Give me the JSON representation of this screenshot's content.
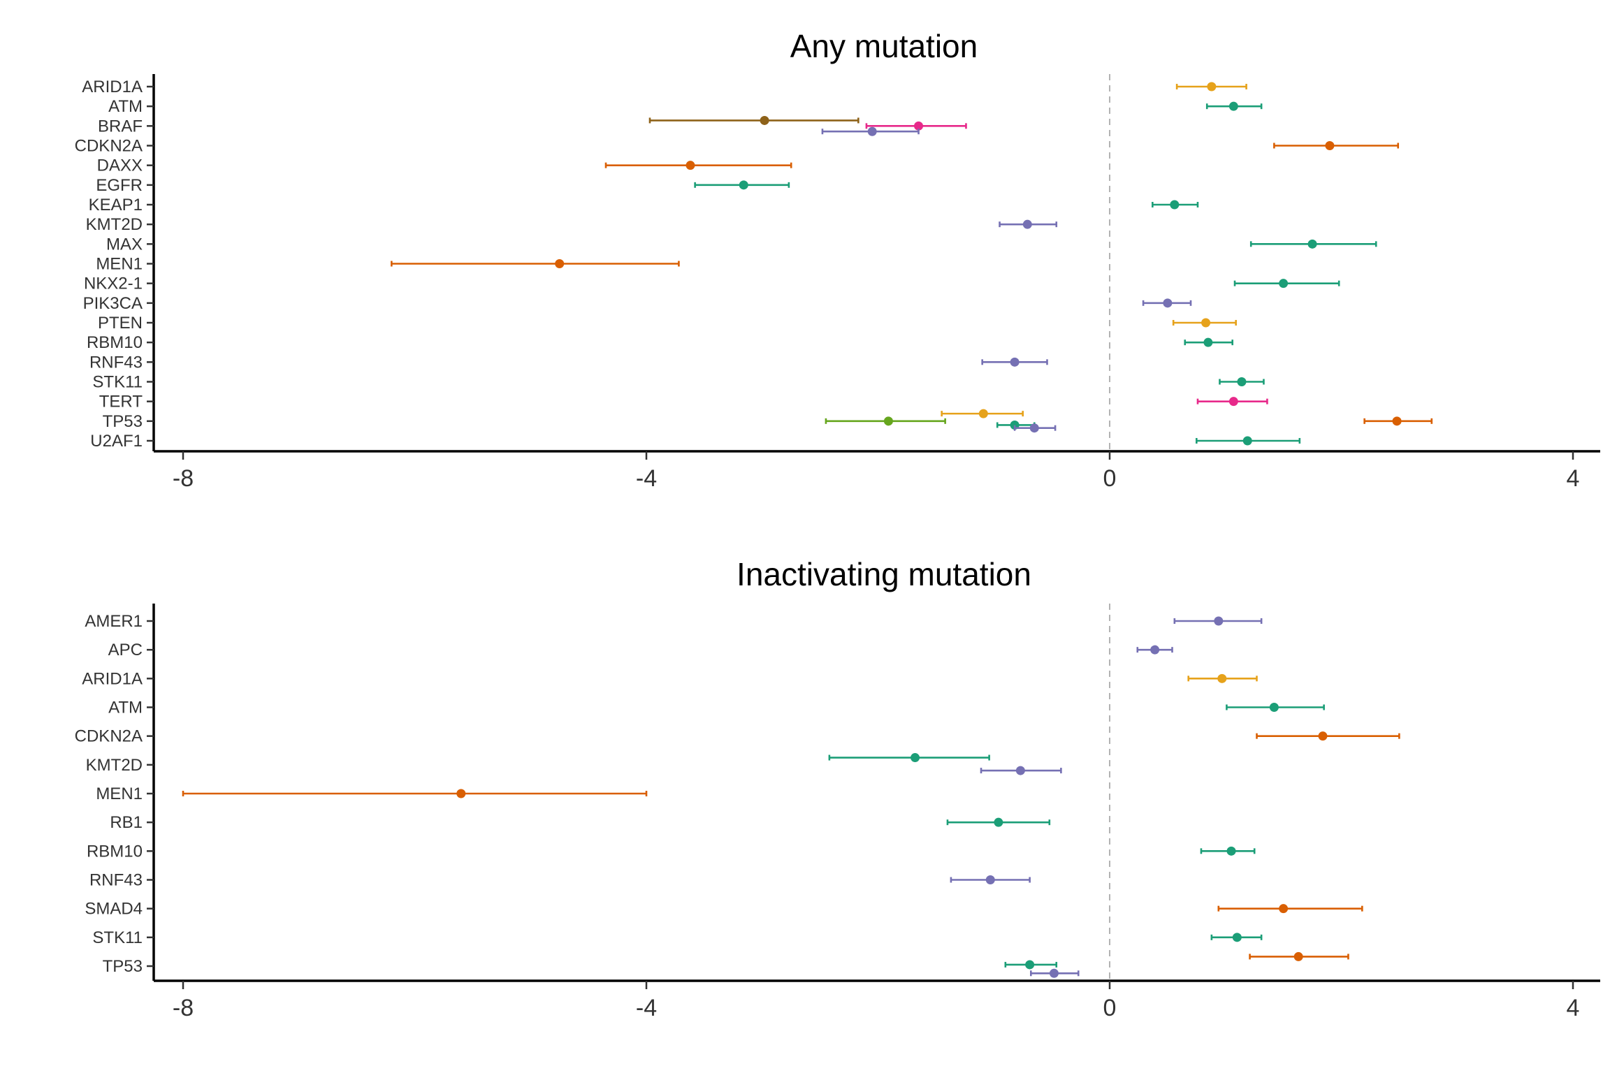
{
  "chart_data": [
    {
      "type": "forest",
      "title": "Any mutation",
      "xlim": [
        -8,
        4
      ],
      "xticks": [
        -8,
        -4,
        0,
        4
      ],
      "reference_line": 0,
      "genes": [
        "ARID1A",
        "ATM",
        "BRAF",
        "CDKN2A",
        "DAXX",
        "EGFR",
        "KEAP1",
        "KMT2D",
        "MAX",
        "MEN1",
        "NKX2-1",
        "PIK3CA",
        "PTEN",
        "RBM10",
        "RNF43",
        "STK11",
        "TERT",
        "TP53",
        "U2AF1"
      ],
      "points": [
        {
          "gene": "ARID1A",
          "est": 0.88,
          "lo": 0.58,
          "hi": 1.18,
          "color": "#E6A21B",
          "offset": 0
        },
        {
          "gene": "ATM",
          "est": 1.07,
          "lo": 0.84,
          "hi": 1.31,
          "color": "#1B9E77",
          "offset": 0
        },
        {
          "gene": "BRAF",
          "est": -2.98,
          "lo": -3.97,
          "hi": -2.17,
          "color": "#8E6219",
          "offset": -0.28
        },
        {
          "gene": "BRAF",
          "est": -1.65,
          "lo": -2.1,
          "hi": -1.24,
          "color": "#E7298A",
          "offset": 0
        },
        {
          "gene": "BRAF",
          "est": -2.05,
          "lo": -2.48,
          "hi": -1.65,
          "color": "#7570B3",
          "offset": 0.28
        },
        {
          "gene": "CDKN2A",
          "est": 1.9,
          "lo": 1.42,
          "hi": 2.49,
          "color": "#D95F02",
          "offset": 0
        },
        {
          "gene": "DAXX",
          "est": -3.62,
          "lo": -4.35,
          "hi": -2.75,
          "color": "#D95F02",
          "offset": 0
        },
        {
          "gene": "EGFR",
          "est": -3.16,
          "lo": -3.58,
          "hi": -2.77,
          "color": "#1B9E77",
          "offset": 0
        },
        {
          "gene": "KEAP1",
          "est": 0.56,
          "lo": 0.37,
          "hi": 0.76,
          "color": "#1B9E77",
          "offset": 0
        },
        {
          "gene": "KMT2D",
          "est": -0.71,
          "lo": -0.95,
          "hi": -0.46,
          "color": "#7570B3",
          "offset": 0
        },
        {
          "gene": "MAX",
          "est": 1.75,
          "lo": 1.22,
          "hi": 2.3,
          "color": "#1B9E77",
          "offset": 0
        },
        {
          "gene": "MEN1",
          "est": -4.75,
          "lo": -6.2,
          "hi": -3.72,
          "color": "#D95F02",
          "offset": 0
        },
        {
          "gene": "NKX2-1",
          "est": 1.5,
          "lo": 1.08,
          "hi": 1.98,
          "color": "#1B9E77",
          "offset": 0
        },
        {
          "gene": "PIK3CA",
          "est": 0.5,
          "lo": 0.29,
          "hi": 0.7,
          "color": "#7570B3",
          "offset": 0
        },
        {
          "gene": "PTEN",
          "est": 0.83,
          "lo": 0.55,
          "hi": 1.09,
          "color": "#E6A21B",
          "offset": 0
        },
        {
          "gene": "RBM10",
          "est": 0.85,
          "lo": 0.65,
          "hi": 1.06,
          "color": "#1B9E77",
          "offset": 0
        },
        {
          "gene": "RNF43",
          "est": -0.82,
          "lo": -1.1,
          "hi": -0.54,
          "color": "#7570B3",
          "offset": 0
        },
        {
          "gene": "STK11",
          "est": 1.14,
          "lo": 0.95,
          "hi": 1.33,
          "color": "#1B9E77",
          "offset": 0
        },
        {
          "gene": "TERT",
          "est": 1.07,
          "lo": 0.76,
          "hi": 1.36,
          "color": "#E7298A",
          "offset": 0
        },
        {
          "gene": "TP53",
          "est": -1.09,
          "lo": -1.45,
          "hi": -0.75,
          "color": "#E6A21B",
          "offset": -0.38
        },
        {
          "gene": "TP53",
          "est": 2.48,
          "lo": 2.2,
          "hi": 2.78,
          "color": "#D95F02",
          "offset": 0
        },
        {
          "gene": "TP53",
          "est": -1.91,
          "lo": -2.45,
          "hi": -1.42,
          "color": "#66A61E",
          "offset": 0
        },
        {
          "gene": "TP53",
          "est": -0.82,
          "lo": -0.97,
          "hi": -0.65,
          "color": "#1B9E77",
          "offset": 0.2
        },
        {
          "gene": "TP53",
          "est": -0.65,
          "lo": -0.82,
          "hi": -0.47,
          "color": "#7570B3",
          "offset": 0.35
        },
        {
          "gene": "U2AF1",
          "est": 1.19,
          "lo": 0.75,
          "hi": 1.64,
          "color": "#1B9E77",
          "offset": 0
        }
      ]
    },
    {
      "type": "forest",
      "title": "Inactivating mutation",
      "xlim": [
        -8,
        4
      ],
      "xticks": [
        -8,
        -4,
        0,
        4
      ],
      "reference_line": 0,
      "genes": [
        "AMER1",
        "APC",
        "ARID1A",
        "ATM",
        "CDKN2A",
        "KMT2D",
        "MEN1",
        "RB1",
        "RBM10",
        "RNF43",
        "SMAD4",
        "STK11",
        "TP53"
      ],
      "points": [
        {
          "gene": "AMER1",
          "est": 0.94,
          "lo": 0.56,
          "hi": 1.31,
          "color": "#7570B3",
          "offset": 0
        },
        {
          "gene": "APC",
          "est": 0.39,
          "lo": 0.24,
          "hi": 0.54,
          "color": "#7570B3",
          "offset": 0
        },
        {
          "gene": "ARID1A",
          "est": 0.97,
          "lo": 0.68,
          "hi": 1.27,
          "color": "#E6A21B",
          "offset": 0
        },
        {
          "gene": "ATM",
          "est": 1.42,
          "lo": 1.01,
          "hi": 1.85,
          "color": "#1B9E77",
          "offset": 0
        },
        {
          "gene": "CDKN2A",
          "est": 1.84,
          "lo": 1.27,
          "hi": 2.5,
          "color": "#D95F02",
          "offset": 0
        },
        {
          "gene": "KMT2D",
          "est": -1.68,
          "lo": -2.42,
          "hi": -1.04,
          "color": "#1B9E77",
          "offset": -0.25
        },
        {
          "gene": "KMT2D",
          "est": -0.77,
          "lo": -1.11,
          "hi": -0.42,
          "color": "#7570B3",
          "offset": 0.2
        },
        {
          "gene": "MEN1",
          "est": -5.6,
          "lo": -8.0,
          "hi": -4.0,
          "color": "#D95F02",
          "offset": 0
        },
        {
          "gene": "RB1",
          "est": -0.96,
          "lo": -1.4,
          "hi": -0.52,
          "color": "#1B9E77",
          "offset": 0
        },
        {
          "gene": "RBM10",
          "est": 1.05,
          "lo": 0.79,
          "hi": 1.25,
          "color": "#1B9E77",
          "offset": 0
        },
        {
          "gene": "RNF43",
          "est": -1.03,
          "lo": -1.37,
          "hi": -0.69,
          "color": "#7570B3",
          "offset": 0
        },
        {
          "gene": "SMAD4",
          "est": 1.5,
          "lo": 0.94,
          "hi": 2.18,
          "color": "#D95F02",
          "offset": 0
        },
        {
          "gene": "STK11",
          "est": 1.1,
          "lo": 0.88,
          "hi": 1.31,
          "color": "#1B9E77",
          "offset": 0
        },
        {
          "gene": "TP53",
          "est": 1.63,
          "lo": 1.21,
          "hi": 2.06,
          "color": "#D95F02",
          "offset": -0.33
        },
        {
          "gene": "TP53",
          "est": -0.69,
          "lo": -0.9,
          "hi": -0.46,
          "color": "#1B9E77",
          "offset": -0.05
        },
        {
          "gene": "TP53",
          "est": -0.48,
          "lo": -0.68,
          "hi": -0.27,
          "color": "#7570B3",
          "offset": 0.25
        }
      ]
    }
  ]
}
